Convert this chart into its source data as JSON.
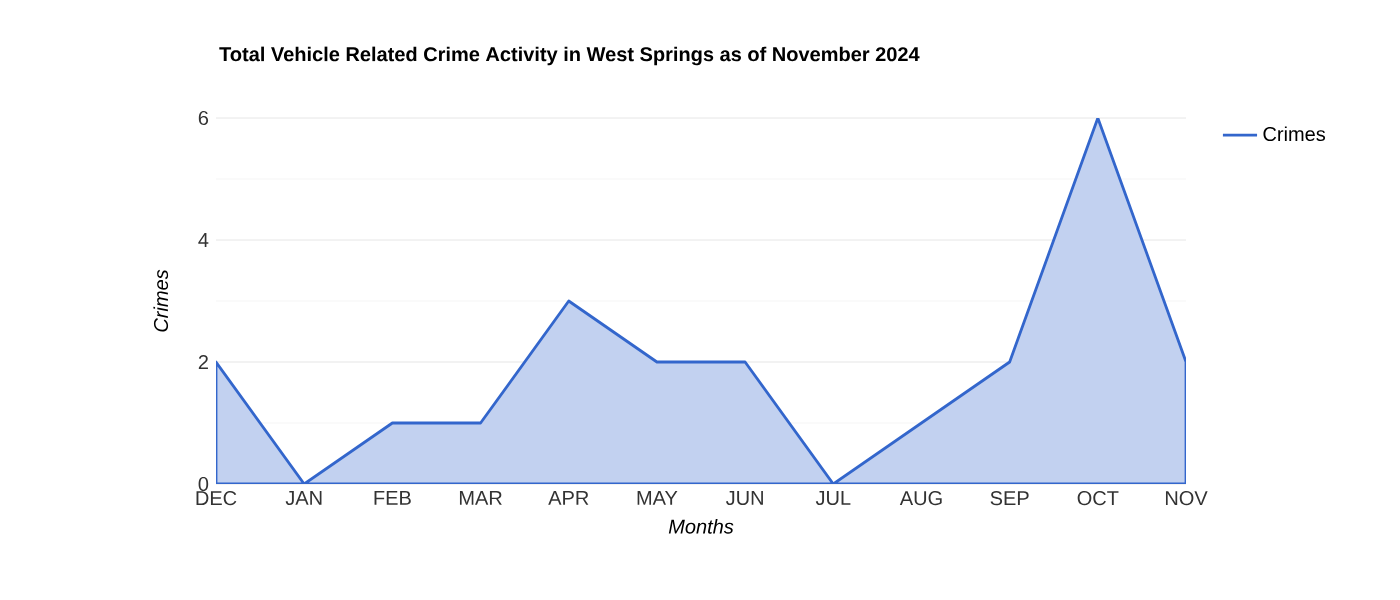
{
  "chart_data": {
    "type": "area",
    "title": "Total Vehicle Related Crime Activity in West Springs as of November 2024",
    "xlabel": "Months",
    "ylabel": "Crimes",
    "categories": [
      "DEC",
      "JAN",
      "FEB",
      "MAR",
      "APR",
      "MAY",
      "JUN",
      "JUL",
      "AUG",
      "SEP",
      "OCT",
      "NOV"
    ],
    "series": [
      {
        "name": "Crimes",
        "color": "#3366cc",
        "values": [
          2,
          0,
          1,
          1,
          3,
          2,
          2,
          0,
          1,
          2,
          6,
          2
        ]
      }
    ],
    "ylim": [
      0,
      6
    ],
    "yticks": [
      0,
      2,
      4,
      6
    ],
    "grid": "y",
    "legend": "right",
    "marker": "none",
    "line_style": "solid"
  }
}
